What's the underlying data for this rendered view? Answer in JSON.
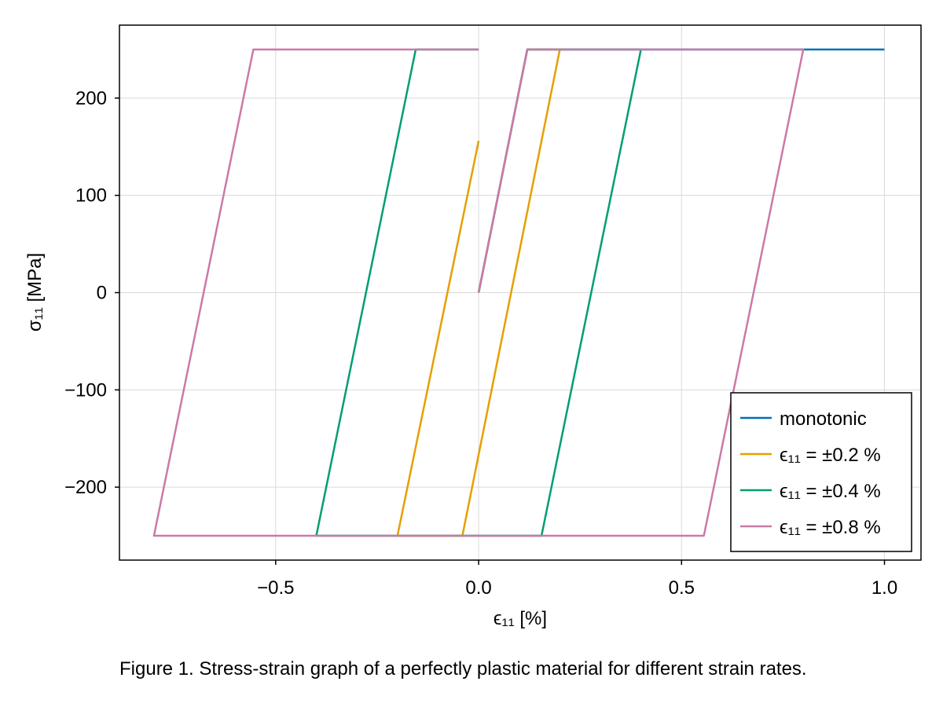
{
  "caption": "Figure 1. Stress-strain graph of a perfectly plastic material for different strain rates.",
  "chart_data": {
    "type": "line",
    "xlabel": "ϵ₁₁ [%]",
    "ylabel": "σ₁₁ [MPa]",
    "xlim": [
      -0.885,
      1.09
    ],
    "ylim": [
      -275,
      275
    ],
    "xticks": [
      -0.5,
      0.0,
      0.5,
      1.0
    ],
    "xtick_labels": [
      "−0.5",
      "0.0",
      "0.5",
      "1.0"
    ],
    "yticks": [
      -200,
      -100,
      0,
      100,
      200
    ],
    "ytick_labels": [
      "−200",
      "−100",
      "0",
      "100",
      "200"
    ],
    "grid": true,
    "legend_position": "bottom-right",
    "series": [
      {
        "name": "monotonic",
        "color": "#0072b2",
        "x": [
          0.0,
          0.12,
          1.0
        ],
        "y": [
          0,
          250,
          250
        ]
      },
      {
        "name": "ϵ₁₁ = ±0.2 %",
        "color": "#e69f00",
        "x": [
          0.0,
          0.12,
          0.2,
          -0.04,
          -0.2,
          0.0
        ],
        "y": [
          0,
          250,
          250,
          -250,
          -250,
          156
        ]
      },
      {
        "name": "ϵ₁₁ = ±0.4 %",
        "color": "#009e73",
        "x": [
          0.0,
          0.12,
          0.4,
          0.155,
          -0.4,
          -0.155,
          0.0
        ],
        "y": [
          0,
          250,
          250,
          -250,
          -250,
          250,
          250
        ]
      },
      {
        "name": "ϵ₁₁ = ±0.8 %",
        "color": "#cc79a7",
        "x": [
          0.0,
          0.12,
          0.8,
          0.555,
          -0.8,
          -0.555,
          0.0
        ],
        "y": [
          0,
          250,
          250,
          -250,
          -250,
          250,
          250
        ]
      }
    ]
  }
}
